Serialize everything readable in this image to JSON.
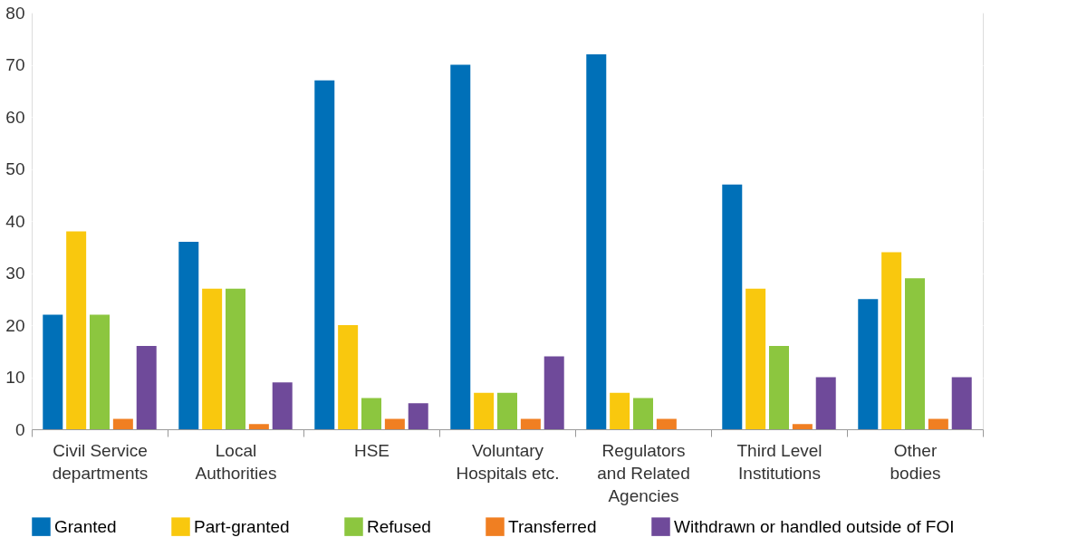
{
  "chart_data": {
    "type": "bar",
    "categories": [
      "Civil Service\ndepartments",
      "Local\nAuthorities",
      "HSE",
      "Voluntary\nHospitals etc.",
      "Regulators\nand Related\nAgencies",
      "Third Level\nInstitutions",
      "Other\nbodies"
    ],
    "series": [
      {
        "name": "Granted",
        "color": "#0070b8",
        "values": [
          22,
          36,
          67,
          70,
          72,
          47,
          25
        ]
      },
      {
        "name": "Part-granted",
        "color": "#f9c80e",
        "values": [
          38,
          27,
          20,
          7,
          7,
          27,
          34
        ]
      },
      {
        "name": "Refused",
        "color": "#8cc63f",
        "values": [
          22,
          27,
          6,
          7,
          6,
          16,
          29
        ]
      },
      {
        "name": "Transferred",
        "color": "#f07f22",
        "values": [
          2,
          1,
          2,
          2,
          2,
          1,
          2
        ]
      },
      {
        "name": "Withdrawn or handled outside of FOI",
        "color": "#6f4a9a",
        "values": [
          16,
          9,
          5,
          14,
          null,
          10,
          10
        ]
      }
    ],
    "ylim": [
      0,
      80
    ],
    "yticks": [
      0,
      10,
      20,
      30,
      40,
      50,
      60,
      70,
      80
    ],
    "grid": "y",
    "legend": "bottom"
  }
}
